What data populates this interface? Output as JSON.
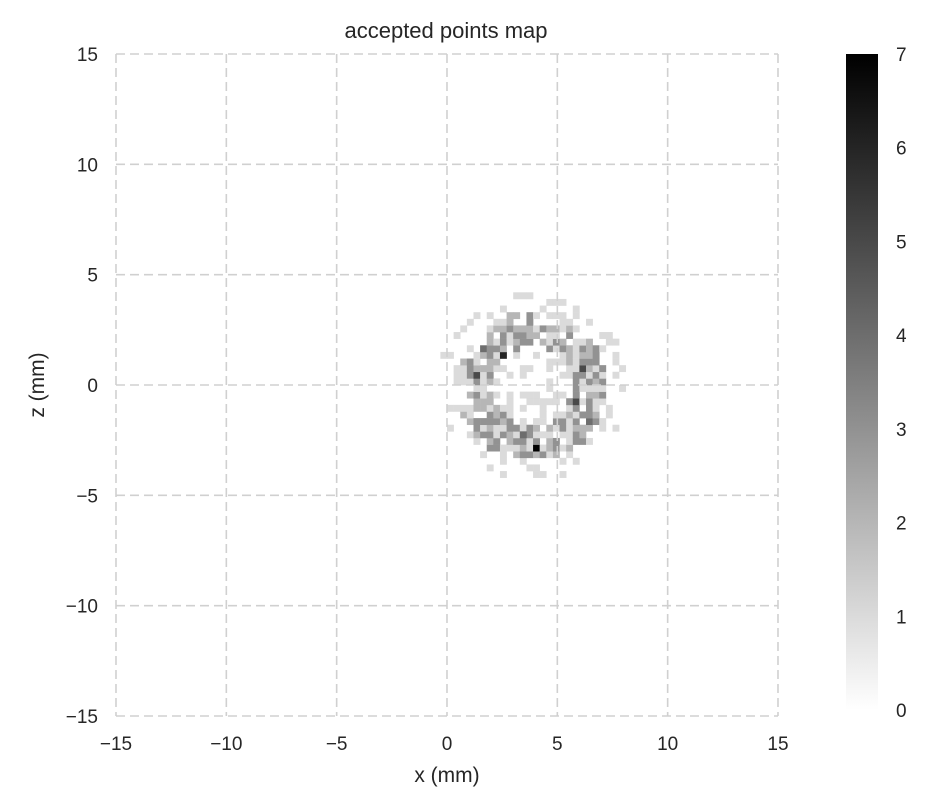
{
  "chart_data": {
    "type": "heatmap",
    "title": "accepted points map",
    "xlabel": "x (mm)",
    "ylabel": "z (mm)",
    "xlim": [
      -15,
      15
    ],
    "ylim": [
      -15,
      15
    ],
    "x_ticks": [
      -15,
      -10,
      -5,
      0,
      5,
      10,
      15
    ],
    "y_ticks": [
      -15,
      -10,
      -5,
      0,
      5,
      10,
      15
    ],
    "x_tick_labels": [
      "−15",
      "−10",
      "−5",
      "0",
      "5",
      "10",
      "15"
    ],
    "y_tick_labels": [
      "15",
      "10",
      "5",
      "0",
      "−5",
      "−10",
      "−15"
    ],
    "grid": true,
    "grid_style": "dashed",
    "colormap": "greys",
    "colorbar": {
      "range": [
        0,
        7
      ],
      "ticks": [
        0,
        1,
        2,
        3,
        4,
        5,
        6,
        7
      ],
      "tick_labels": [
        "0",
        "1",
        "2",
        "3",
        "4",
        "5",
        "6",
        "7"
      ],
      "color_low": "#ffffff",
      "color_high": "#000000"
    },
    "bin_size_mm": 0.3,
    "distribution": {
      "shape": "ring",
      "center": [
        3.6,
        -0.2
      ],
      "inner_radius": 1.8,
      "outer_radius": 3.4
    },
    "notable_cells": [
      {
        "x": 3.8,
        "z": -2.9,
        "count": 7
      },
      {
        "x": 2.5,
        "z": 1.1,
        "count": 6
      },
      {
        "x": 1.3,
        "z": 0.4,
        "count": 5
      },
      {
        "x": 6.0,
        "z": 0.5,
        "count": 5
      },
      {
        "x": 5.8,
        "z": -0.9,
        "count": 5
      },
      {
        "x": 3.2,
        "z": -2.3,
        "count": 4
      },
      {
        "x": 1.6,
        "z": 1.4,
        "count": 4
      },
      {
        "x": 6.3,
        "z": -1.8,
        "count": 4
      },
      {
        "x": 4.6,
        "z": 1.5,
        "count": 3
      },
      {
        "x": 1.9,
        "z": -1.4,
        "count": 3
      }
    ]
  }
}
